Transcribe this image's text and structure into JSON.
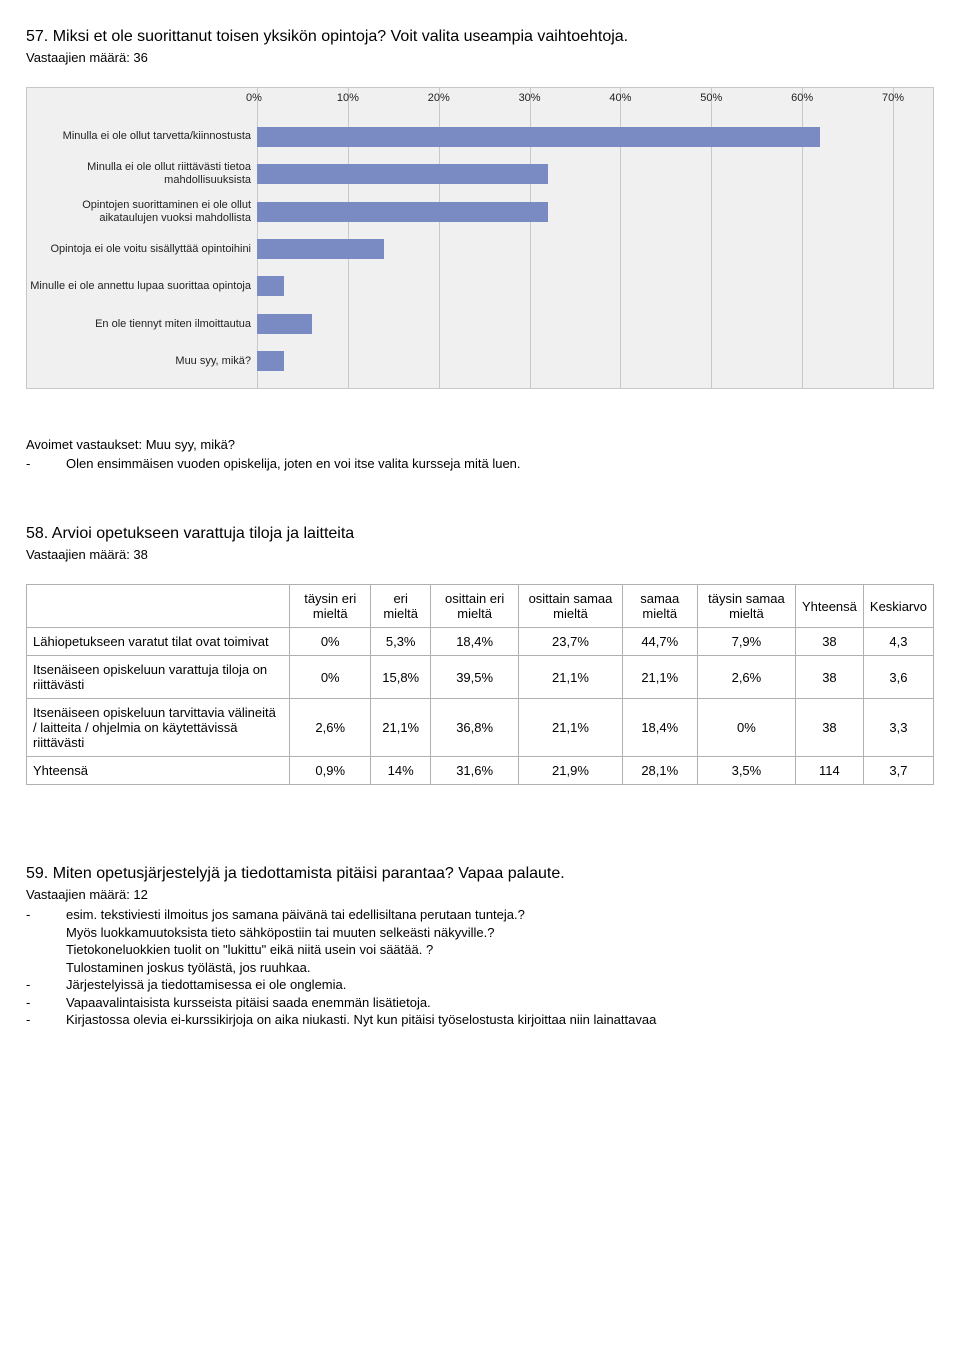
{
  "q57": {
    "title": "57. Miksi et ole suorittanut toisen yksikön opintoja? Voit valita useampia vaihtoehtoja.",
    "resp_count": "Vastaajien määrä: 36",
    "chart": {
      "type": "bar",
      "x_ticks": [
        0,
        10,
        20,
        30,
        40,
        50,
        60,
        70
      ],
      "x_max": 70,
      "bar_color": "#7a8bc4",
      "grid_color": "#c8c8c8",
      "bg_color": "#f0f0f0",
      "label_fontsize": 11,
      "rows": [
        {
          "label": "Minulla ei ole ollut tarvetta/kiinnostusta",
          "value": 62
        },
        {
          "label": "Minulla ei ole ollut riittävästi tietoa mahdollisuuksista",
          "value": 32
        },
        {
          "label": "Opintojen suorittaminen ei ole ollut aikataulujen vuoksi mahdollista",
          "value": 32
        },
        {
          "label": "Opintoja ei ole voitu sisällyttää opintoihini",
          "value": 14
        },
        {
          "label": "Minulle ei ole annettu lupaa suorittaa opintoja",
          "value": 3
        },
        {
          "label": "En ole tiennyt miten ilmoittautua",
          "value": 6
        },
        {
          "label": "Muu syy, mikä?",
          "value": 3
        }
      ]
    },
    "open_title": "Avoimet vastaukset: Muu syy, mikä?",
    "open_answer": "Olen ensimmäisen vuoden opiskelija, joten en voi itse valita kursseja mitä luen."
  },
  "q58": {
    "title": "58. Arvioi opetukseen varattuja tiloja ja laitteita",
    "resp_count": "Vastaajien määrä: 38",
    "columns": [
      "täysin eri mieltä",
      "eri mieltä",
      "osittain eri mieltä",
      "osittain samaa mieltä",
      "samaa mieltä",
      "täysin samaa mieltä",
      "Yhteensä",
      "Keskiarvo"
    ],
    "rows": [
      {
        "label": "Lähiopetukseen varatut tilat ovat toimivat",
        "cells": [
          "0%",
          "5,3%",
          "18,4%",
          "23,7%",
          "44,7%",
          "7,9%",
          "38",
          "4,3"
        ]
      },
      {
        "label": "Itsenäiseen opiskeluun varattuja tiloja on    riittävästi",
        "cells": [
          "0%",
          "15,8%",
          "39,5%",
          "21,1%",
          "21,1%",
          "2,6%",
          "38",
          "3,6"
        ]
      },
      {
        "label": "Itsenäiseen opiskeluun tarvittavia välineitä / laitteita / ohjelmia on käytettävissä    riittävästi",
        "cells": [
          "2,6%",
          "21,1%",
          "36,8%",
          "21,1%",
          "18,4%",
          "0%",
          "38",
          "3,3"
        ]
      },
      {
        "label": "Yhteensä",
        "cells": [
          "0,9%",
          "14%",
          "31,6%",
          "21,9%",
          "28,1%",
          "3,5%",
          "114",
          "3,7"
        ]
      }
    ]
  },
  "q59": {
    "title": "59. Miten opetusjärjestelyjä ja tiedottamista pitäisi parantaa? Vapaa palaute.",
    "resp_count": "Vastaajien määrä: 12",
    "items": [
      {
        "dash": true,
        "lines": [
          "esim. tekstiviesti ilmoitus jos samana päivänä tai edellisiltana perutaan tunteja.?",
          "Myös luokkamuutoksista tieto sähköpostiin tai muuten selkeästi näkyville.?",
          "Tietokoneluokkien tuolit on \"lukittu\" eikä niitä usein voi säätää. ?",
          "Tulostaminen joskus työlästä, jos ruuhkaa."
        ]
      },
      {
        "dash": true,
        "lines": [
          "Järjestelyissä ja tiedottamisessa ei ole onglemia."
        ]
      },
      {
        "dash": true,
        "lines": [
          "Vapaavalintaisista kursseista pitäisi saada enemmän lisätietoja."
        ]
      },
      {
        "dash": true,
        "lines": [
          "Kirjastossa olevia ei-kurssikirjoja on aika niukasti. Nyt kun pitäisi työselostusta kirjoittaa niin lainattavaa"
        ]
      }
    ]
  }
}
